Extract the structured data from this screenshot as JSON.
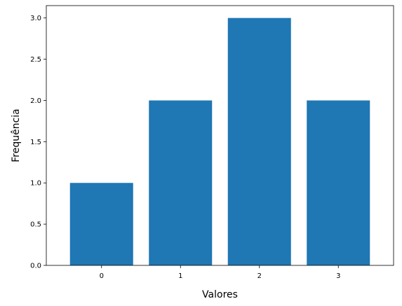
{
  "chart_data": {
    "type": "bar",
    "categories": [
      "0",
      "1",
      "2",
      "3"
    ],
    "values": [
      1,
      2,
      3,
      2
    ],
    "title": "",
    "xlabel": "Valores",
    "ylabel": "Frequência",
    "ylim": [
      0,
      3.15
    ],
    "yticks": [
      "0.0",
      "0.5",
      "1.0",
      "1.5",
      "2.0",
      "2.5",
      "3.0"
    ],
    "bar_color": "#1f77b4",
    "grid": false,
    "legend": "none"
  }
}
